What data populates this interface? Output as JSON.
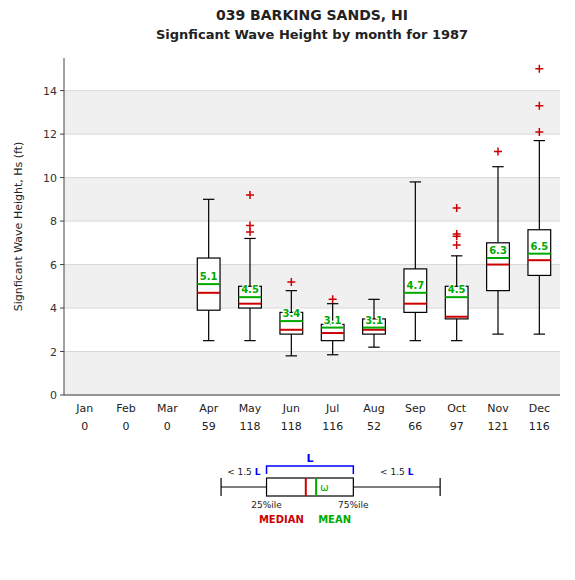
{
  "chart_data": {
    "type": "box",
    "title": "039   BARKING SANDS, HI",
    "subtitle": "Signficant Wave Height by month for 1987",
    "ylabel": "Signficant Wave Height, Hs (ft)",
    "categories": [
      "Jan",
      "Feb",
      "Mar",
      "Apr",
      "May",
      "Jun",
      "Jul",
      "Aug",
      "Sep",
      "Oct",
      "Nov",
      "Dec"
    ],
    "counts": [
      0,
      0,
      0,
      59,
      118,
      118,
      116,
      52,
      66,
      97,
      121,
      116
    ],
    "boxes": [
      null,
      null,
      null,
      {
        "q1": 3.9,
        "median": 4.7,
        "q3": 6.3,
        "mean": 5.1,
        "whislo": 2.5,
        "whishi": 9.0,
        "fliers": []
      },
      {
        "q1": 4.0,
        "median": 4.2,
        "q3": 5.0,
        "mean": 4.5,
        "whislo": 2.5,
        "whishi": 7.2,
        "fliers": [
          7.5,
          7.8,
          9.2
        ]
      },
      {
        "q1": 2.8,
        "median": 3.0,
        "q3": 3.8,
        "mean": 3.4,
        "whislo": 1.8,
        "whishi": 4.8,
        "fliers": [
          5.2
        ]
      },
      {
        "q1": 2.5,
        "median": 2.85,
        "q3": 3.25,
        "mean": 3.1,
        "whislo": 1.85,
        "whishi": 4.2,
        "fliers": [
          4.4
        ]
      },
      {
        "q1": 2.8,
        "median": 3.0,
        "q3": 3.5,
        "mean": 3.1,
        "whislo": 2.2,
        "whishi": 4.4,
        "fliers": []
      },
      {
        "q1": 3.8,
        "median": 4.2,
        "q3": 5.8,
        "mean": 4.7,
        "whislo": 2.5,
        "whishi": 9.8,
        "fliers": []
      },
      {
        "q1": 3.5,
        "median": 3.6,
        "q3": 5.0,
        "mean": 4.5,
        "whislo": 2.5,
        "whishi": 6.4,
        "fliers": [
          6.9,
          7.3,
          7.4,
          8.6
        ]
      },
      {
        "q1": 4.8,
        "median": 6.0,
        "q3": 7.0,
        "mean": 6.3,
        "whislo": 2.8,
        "whishi": 10.5,
        "fliers": [
          11.2
        ]
      },
      {
        "q1": 5.5,
        "median": 6.2,
        "q3": 7.6,
        "mean": 6.5,
        "whislo": 2.8,
        "whishi": 11.7,
        "fliers": [
          12.1,
          13.3,
          15.0
        ]
      }
    ],
    "data_labels": true,
    "ylim": [
      0,
      15.5
    ],
    "yticks": [
      0,
      2,
      4,
      6,
      8,
      10,
      12,
      14
    ],
    "grid": true,
    "colors": {
      "box": "#000000",
      "median": "#cc0000",
      "mean": "#00aa00",
      "flier": "#cc0000",
      "iqr": "#0000ff"
    },
    "annotations": {
      "iqr_label": "L",
      "whisker_label": "< 1.5 ",
      "q1_label": "25%ile",
      "q3_label": "75%ile",
      "median_label": "MEDIAN",
      "mean_label": "MEAN",
      "mean_symbol": "ω"
    }
  }
}
